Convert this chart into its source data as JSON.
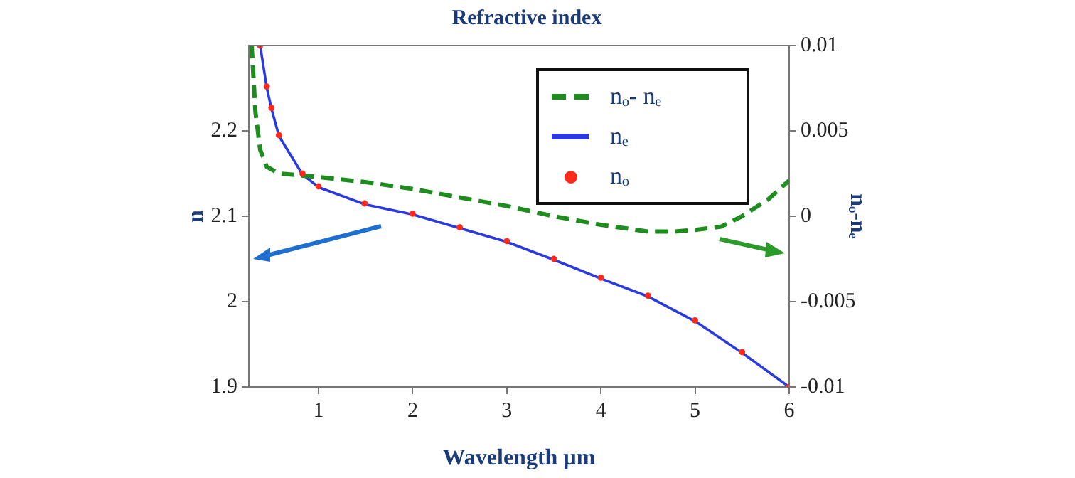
{
  "chart_data": {
    "type": "line",
    "title": "Refractive index",
    "xlabel": "Wavelength µm",
    "ylabel": "n",
    "y2label": "nₒ-nₑ",
    "xlim": [
      0.26,
      6
    ],
    "xticks": [
      1,
      2,
      3,
      4,
      5,
      6
    ],
    "ylim": [
      1.9,
      2.3
    ],
    "yticks": [
      1.9,
      2,
      2.1,
      2.2
    ],
    "y2lim": [
      -0.01,
      0.01
    ],
    "y2ticks": [
      -0.01,
      -0.005,
      0,
      0.005,
      0.01
    ],
    "legend": "top right",
    "grid": false,
    "series": [
      {
        "name": "nₒ- nₑ",
        "color": "#1e8c1e",
        "axis": "y2",
        "line_style": "dashed",
        "marker": "none",
        "x": [
          0.29,
          0.33,
          0.38,
          0.45,
          0.58,
          1,
          1.5,
          2,
          2.5,
          3,
          3.5,
          4,
          4.5,
          4.77,
          5,
          5.28,
          5.5,
          5.78,
          6
        ],
        "values": [
          0.01,
          0.0061,
          0.0039,
          0.0029,
          0.0025,
          0.0023,
          0.002,
          0.0016,
          0.0011,
          0.0006,
          0,
          -0.0005,
          -0.0009,
          -0.0009,
          -0.0008,
          -0.0006,
          0,
          0.001,
          0.0021
        ]
      },
      {
        "name": "nₑ",
        "color": "#2a3ae0",
        "line_style": "solid",
        "marker": "none",
        "x": [
          0.38,
          0.45,
          0.5,
          0.58,
          0.83,
          1,
          1.49,
          2,
          2.5,
          3,
          3.5,
          4,
          4.5,
          5,
          5.5,
          6
        ],
        "values": [
          2.3,
          2.251,
          2.226,
          2.194,
          2.149,
          2.134,
          2.114,
          2.102,
          2.086,
          2.07,
          2.049,
          2.027,
          2.006,
          1.977,
          1.94,
          1.9
        ]
      },
      {
        "name": "nₒ",
        "color": "#ff2a1a",
        "type": "scatter",
        "marker": "circle",
        "x": [
          0.38,
          0.45,
          0.5,
          0.58,
          0.83,
          1,
          1.49,
          2,
          2.5,
          3,
          3.5,
          4,
          4.5,
          5,
          5.5,
          6
        ],
        "values": [
          2.3,
          2.252,
          2.227,
          2.195,
          2.15,
          2.135,
          2.115,
          2.103,
          2.087,
          2.071,
          2.05,
          2.028,
          2.007,
          1.978,
          1.941,
          1.9
        ]
      }
    ]
  }
}
